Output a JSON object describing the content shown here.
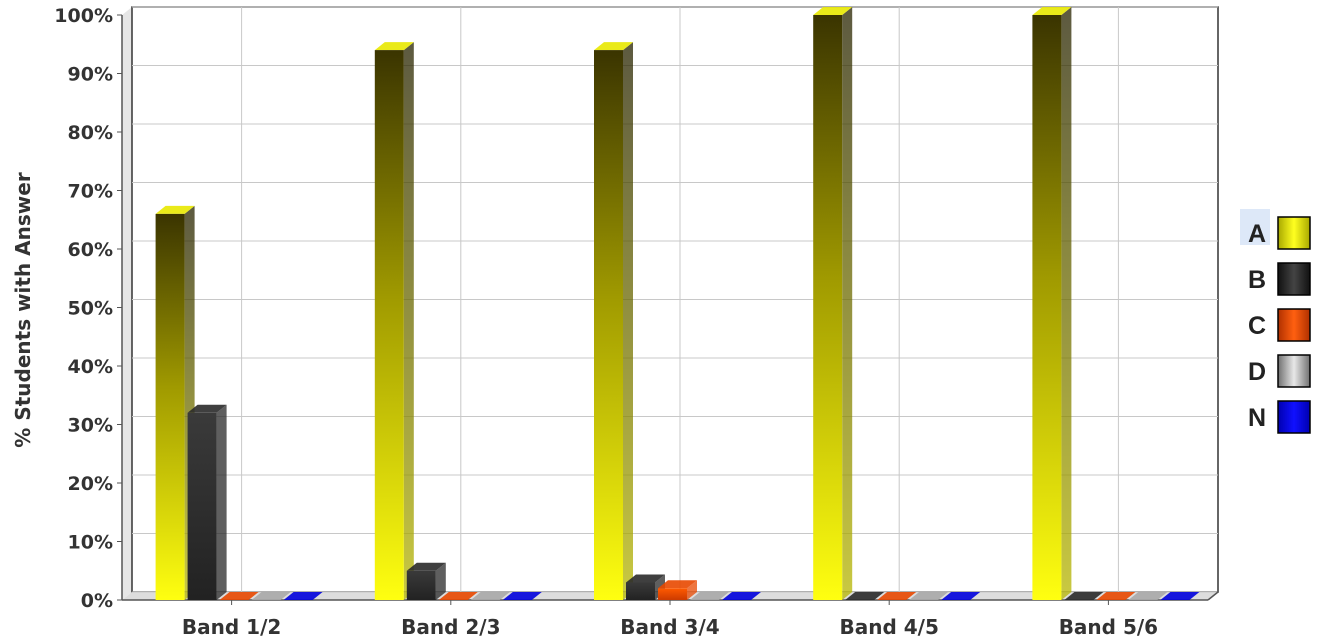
{
  "chart_data": {
    "type": "bar",
    "title": "",
    "xlabel": "",
    "ylabel": "% Students with Answer",
    "ylim": [
      0,
      100
    ],
    "yticks": [
      "0%",
      "10%",
      "20%",
      "30%",
      "40%",
      "50%",
      "60%",
      "70%",
      "80%",
      "90%",
      "100%"
    ],
    "categories": [
      "Band 1/2",
      "Band 2/3",
      "Band 3/4",
      "Band 4/5",
      "Band 5/6"
    ],
    "series": [
      {
        "name": "A",
        "color": "#e8e800",
        "values": [
          66,
          94,
          94,
          100,
          100
        ]
      },
      {
        "name": "B",
        "color": "#2a2a2a",
        "values": [
          32,
          5,
          3,
          0,
          0
        ]
      },
      {
        "name": "C",
        "color": "#e84800",
        "values": [
          0,
          0,
          2,
          0,
          0
        ]
      },
      {
        "name": "D",
        "color": "#a8a8a8",
        "values": [
          0,
          0,
          0,
          0,
          0
        ]
      },
      {
        "name": "N",
        "color": "#0000dd",
        "values": [
          0,
          0,
          0,
          0,
          0
        ]
      }
    ],
    "grid": true,
    "legend": "right",
    "style": "3d"
  }
}
